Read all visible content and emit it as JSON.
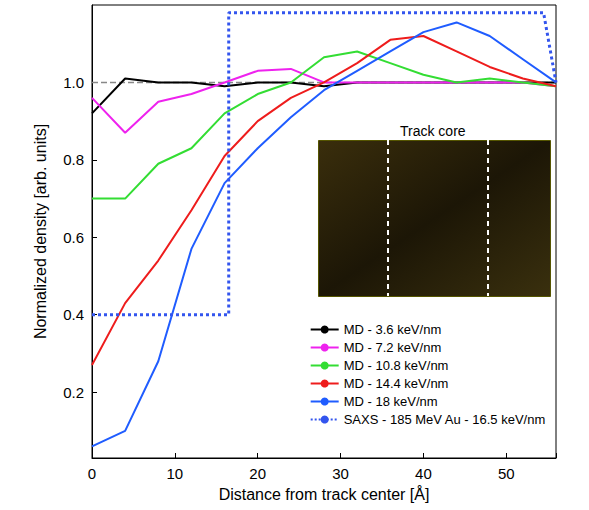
{
  "chart_data": {
    "type": "line",
    "xlabel": "Distance from track center [Å]",
    "ylabel": "Normalized density [arb. units]",
    "xlim": [
      0,
      56
    ],
    "ylim": [
      0.03,
      1.2
    ],
    "xticks": [
      0,
      10,
      20,
      30,
      40,
      50
    ],
    "yticks": [
      0.2,
      0.4,
      0.6,
      0.8,
      {
        "value": 1,
        "label": "1.0"
      }
    ],
    "grid": false,
    "legend": "lower right",
    "series": [
      {
        "name": "MD - 3.6 keV/nm",
        "color": "#000000",
        "line_style": "solid",
        "x": [
          0,
          4,
          8,
          12,
          16,
          20,
          24,
          28,
          32,
          36,
          40,
          44,
          48,
          52,
          56
        ],
        "values": [
          0.92,
          1.01,
          1.0,
          1.0,
          0.99,
          1.0,
          1.0,
          0.99,
          1.0,
          1.0,
          1.0,
          1.0,
          1.0,
          1.0,
          1.0
        ]
      },
      {
        "name": "MD - 7.2 keV/nm",
        "color": "#ee22ee",
        "line_style": "solid",
        "x": [
          0,
          4,
          8,
          12,
          16,
          20,
          24,
          28,
          32,
          36,
          40,
          44,
          48,
          52,
          56
        ],
        "values": [
          0.96,
          0.87,
          0.95,
          0.97,
          1.0,
          1.03,
          1.035,
          1.0,
          1.0,
          1.0,
          1.0,
          1.0,
          1.0,
          1.0,
          0.99
        ]
      },
      {
        "name": "MD - 10.8 keV/nm",
        "color": "#33dd33",
        "line_style": "solid",
        "x": [
          0,
          4,
          8,
          12,
          16,
          20,
          24,
          28,
          32,
          36,
          40,
          44,
          48,
          52,
          56
        ],
        "values": [
          0.7,
          0.7,
          0.79,
          0.83,
          0.92,
          0.97,
          1.0,
          1.065,
          1.08,
          1.05,
          1.02,
          1.0,
          1.01,
          1.0,
          0.99
        ]
      },
      {
        "name": "MD - 14.4 keV/nm",
        "color": "#ee1c1c",
        "line_style": "solid",
        "x": [
          0,
          4,
          8,
          12,
          16,
          20,
          24,
          28,
          32,
          36,
          40,
          44,
          48,
          52,
          56
        ],
        "values": [
          0.27,
          0.43,
          0.54,
          0.67,
          0.81,
          0.9,
          0.96,
          1.0,
          1.05,
          1.11,
          1.12,
          1.08,
          1.04,
          1.01,
          0.99
        ]
      },
      {
        "name": "MD - 18 keV/nm",
        "color": "#1f5cff",
        "line_style": "solid",
        "x": [
          0,
          4,
          8,
          12,
          16,
          20,
          24,
          28,
          32,
          36,
          40,
          44,
          48,
          52,
          56
        ],
        "values": [
          0.06,
          0.1,
          0.28,
          0.57,
          0.74,
          0.83,
          0.91,
          0.98,
          1.03,
          1.08,
          1.13,
          1.155,
          1.12,
          1.06,
          1.0
        ]
      },
      {
        "name": "SAXS - 185 MeV Au - 16.5 keV/nm",
        "color": "#3355ee",
        "line_style": "dotted",
        "x": [
          0,
          16.5,
          16.5,
          54.5,
          56
        ],
        "values": [
          0.4,
          0.4,
          1.18,
          1.18,
          1.0
        ]
      }
    ],
    "hlines": [
      {
        "y": 1,
        "color": "#888888",
        "line_style": "dashed"
      }
    ],
    "annotations": [
      {
        "text": "Track core"
      }
    ]
  }
}
